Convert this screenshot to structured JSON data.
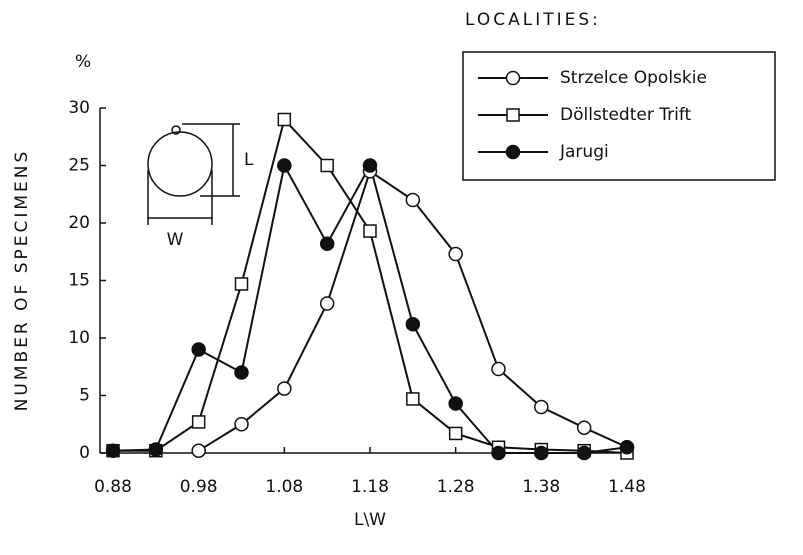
{
  "chart_data": {
    "type": "line",
    "x_label": "L\\W",
    "y_label": "NUMBER OF SPECIMENS",
    "y_unit": "%",
    "legend_title": "LOCALITIES:",
    "annotations": [
      "L",
      "W"
    ],
    "x": [
      0.88,
      0.93,
      0.98,
      1.03,
      1.08,
      1.13,
      1.18,
      1.23,
      1.28,
      1.33,
      1.38,
      1.43,
      1.48
    ],
    "xlim": [
      0.88,
      1.48
    ],
    "xticks": [
      0.88,
      0.98,
      1.08,
      1.18,
      1.28,
      1.38,
      1.48
    ],
    "ylim": [
      0,
      30
    ],
    "yticks": [
      0,
      5,
      10,
      15,
      20,
      25,
      30
    ],
    "grid": false,
    "legend": "upper right",
    "series": [
      {
        "name": "Strzelce Opolskie",
        "color": "#111111",
        "marker": "circle-open",
        "values": [
          null,
          null,
          0.2,
          2.5,
          5.6,
          13,
          24.5,
          22,
          17.3,
          7.3,
          4,
          2.2,
          0.5
        ]
      },
      {
        "name": "Döllstedter Trift",
        "color": "#111111",
        "marker": "square-open",
        "values": [
          0.2,
          0.2,
          2.7,
          14.7,
          29,
          25,
          19.3,
          4.7,
          1.7,
          0.5,
          0.3,
          0.2,
          0
        ]
      },
      {
        "name": "Jarugi",
        "color": "#111111",
        "marker": "circle-filled",
        "values": [
          0.2,
          0.3,
          9,
          7,
          25,
          18.2,
          25,
          11.2,
          4.3,
          0,
          0,
          0,
          0.5
        ]
      }
    ]
  }
}
